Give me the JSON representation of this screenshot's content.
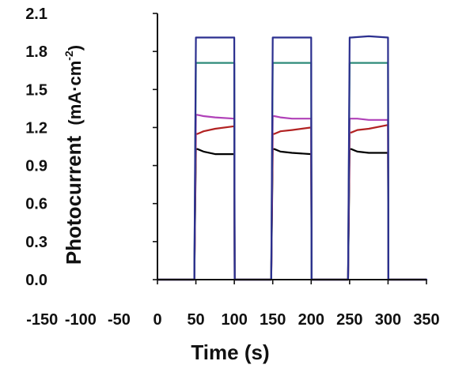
{
  "chart_data": {
    "type": "line",
    "title": "",
    "xlabel": "Time (s)",
    "ylabel": "Photocurrent",
    "ylabel_unit": "(mA·cm",
    "ylabel_unit_sup": "-2",
    "ylabel_unit_close": ")",
    "xlim": [
      -150,
      350
    ],
    "ylim": [
      0.0,
      2.1
    ],
    "xticks": [
      "-150",
      "-100",
      "-50",
      "0",
      "50",
      "100",
      "150",
      "200",
      "250",
      "300",
      "350"
    ],
    "yticks": [
      "0.0",
      "0.3",
      "0.6",
      "0.9",
      "1.2",
      "1.5",
      "1.8",
      "2.1"
    ],
    "grid": false,
    "legend": "none",
    "light_cycles": [
      [
        50,
        100
      ],
      [
        150,
        200
      ],
      [
        250,
        300
      ]
    ],
    "series": [
      {
        "color": "#000000",
        "x": [
          0,
          48,
          50,
          52,
          60,
          75,
          100,
          100.5,
          148,
          150,
          152,
          160,
          175,
          200,
          200.5,
          248,
          250,
          252,
          260,
          275,
          300,
          300.5,
          350
        ],
        "y": [
          0.0,
          0.0,
          1.03,
          1.03,
          1.01,
          0.99,
          0.99,
          0.0,
          0.0,
          1.03,
          1.03,
          1.01,
          1.0,
          0.99,
          0.0,
          0.0,
          1.03,
          1.03,
          1.01,
          1.0,
          1.0,
          0.0,
          0.0
        ]
      },
      {
        "color": "#b22222",
        "x": [
          0,
          48,
          50,
          52,
          60,
          75,
          100,
          100.5,
          148,
          150,
          152,
          160,
          175,
          200,
          200.5,
          248,
          250,
          252,
          260,
          275,
          300,
          300.5,
          350
        ],
        "y": [
          0.0,
          0.0,
          1.15,
          1.15,
          1.17,
          1.19,
          1.21,
          0.0,
          0.0,
          1.15,
          1.15,
          1.17,
          1.18,
          1.2,
          0.0,
          0.0,
          1.16,
          1.16,
          1.18,
          1.19,
          1.22,
          0.0,
          0.0
        ]
      },
      {
        "color": "#b041b8",
        "x": [
          0,
          48,
          50,
          52,
          60,
          75,
          100,
          100.5,
          148,
          150,
          152,
          160,
          175,
          200,
          200.5,
          248,
          250,
          252,
          260,
          275,
          300,
          300.5,
          350
        ],
        "y": [
          0.0,
          0.0,
          1.3,
          1.3,
          1.29,
          1.28,
          1.27,
          0.0,
          0.0,
          1.29,
          1.29,
          1.28,
          1.27,
          1.27,
          0.0,
          0.0,
          1.27,
          1.27,
          1.27,
          1.26,
          1.26,
          0.0,
          0.0
        ]
      },
      {
        "color": "#2e8b7a",
        "x": [
          0,
          48,
          50,
          52,
          75,
          100,
          100.5,
          148,
          150,
          152,
          175,
          200,
          200.5,
          248,
          250,
          252,
          275,
          300,
          300.5,
          350
        ],
        "y": [
          0.0,
          0.0,
          1.71,
          1.71,
          1.71,
          1.71,
          0.0,
          0.0,
          1.71,
          1.71,
          1.71,
          1.71,
          0.0,
          0.0,
          1.71,
          1.71,
          1.71,
          1.71,
          0.0,
          0.0
        ]
      },
      {
        "color": "#2b2f8f",
        "x": [
          0,
          48,
          50,
          52,
          75,
          100,
          100.5,
          148,
          150,
          152,
          175,
          200,
          200.5,
          248,
          250,
          252,
          275,
          300,
          300.5,
          350
        ],
        "y": [
          0.0,
          0.0,
          1.91,
          1.91,
          1.91,
          1.91,
          0.0,
          0.0,
          1.91,
          1.91,
          1.91,
          1.91,
          0.0,
          0.0,
          1.91,
          1.91,
          1.92,
          1.91,
          0.0,
          0.0
        ]
      }
    ]
  }
}
